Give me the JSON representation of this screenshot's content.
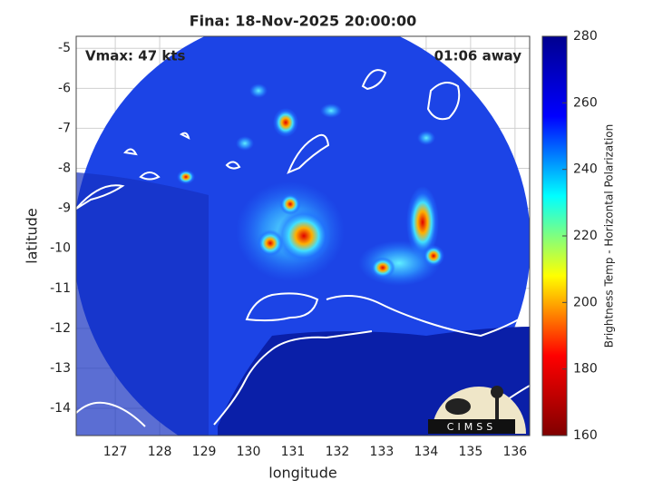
{
  "chart_data": {
    "type": "map",
    "title": "Fina: 18-Nov-2025 20:00:00",
    "annotations": [
      "Vmax: 47 kts",
      "01:06 away"
    ],
    "xlabel": "longitude",
    "ylabel": "latitude",
    "xlim": [
      126.12,
      136.33
    ],
    "xticks": [
      127,
      128,
      129,
      130,
      131,
      132,
      133,
      134,
      135,
      136
    ],
    "ylim": [
      -14.68,
      -4.7
    ],
    "yticks": [
      -5,
      -6,
      -7,
      -8,
      -9,
      -10,
      -11,
      -12,
      -13,
      -14
    ],
    "grid": true,
    "colorbar": {
      "label": "Brightness Temp - Horizontal Polarization",
      "lim": [
        160,
        280
      ],
      "ticks": [
        160,
        180,
        200,
        220,
        240,
        260,
        280
      ],
      "colors": [
        "#800000",
        "#ff0000",
        "#ffff00",
        "#00ffff",
        "#0000ff",
        "#00008f"
      ]
    },
    "logo": "CIMSS"
  }
}
